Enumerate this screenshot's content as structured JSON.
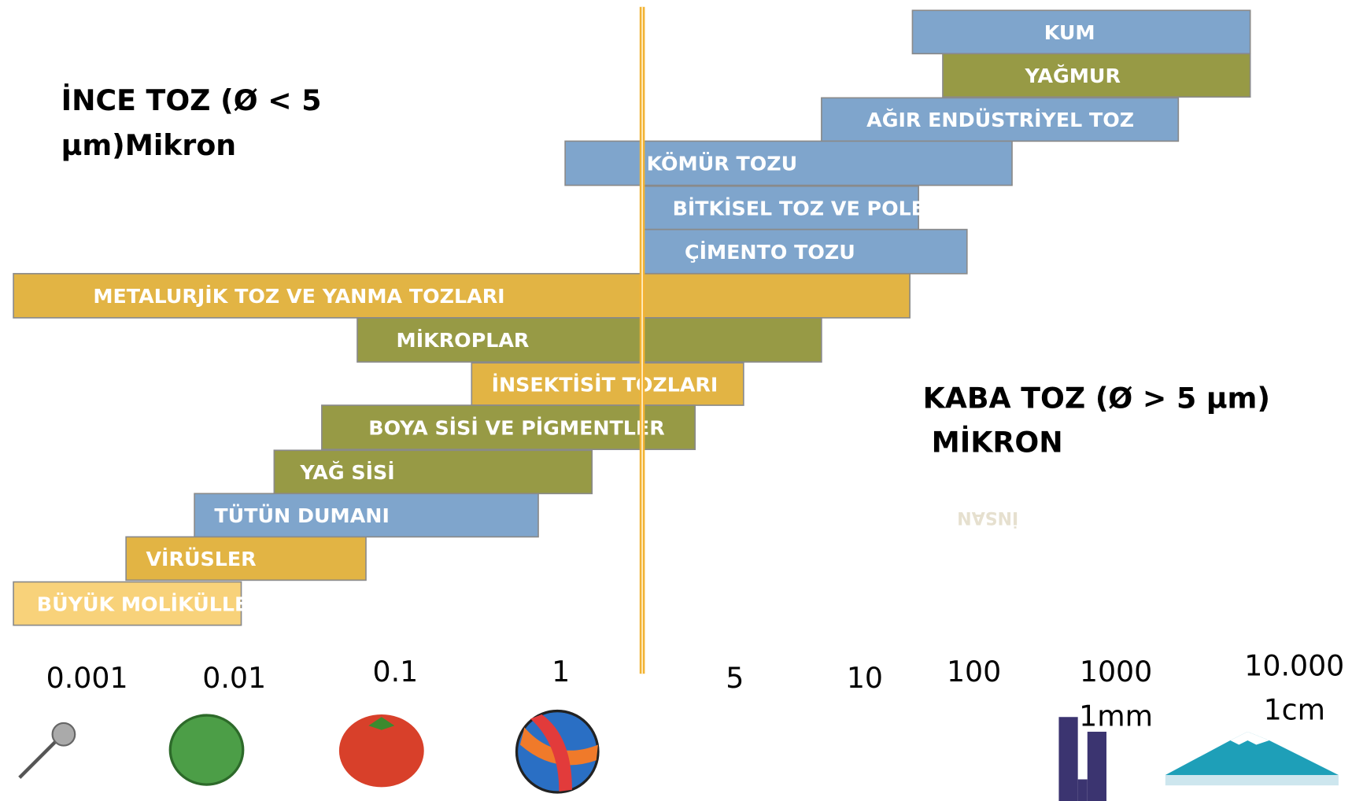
{
  "fine_title": {
    "lines": [
      "İNCE TOZ (Ø < 5",
      "µm)Mikron"
    ]
  },
  "coarse_title": {
    "lines": [
      "KABA TOZ (Ø > 5 µm)",
      "MİKRON"
    ]
  },
  "bars": [
    {
      "label": "KUM"
    },
    {
      "label": "YAĞMUR"
    },
    {
      "label": "AĞIR ENDÜSTRİYEL TOZ"
    },
    {
      "label": "KÖMÜR TOZU"
    },
    {
      "label": "BİTKİSEL TOZ VE POLENLER"
    },
    {
      "label": "ÇİMENTO TOZU"
    },
    {
      "label": "METALURJİK TOZ VE YANMA TOZLARI"
    },
    {
      "label": "MİKROPLAR"
    },
    {
      "label": "İNSEKTİSİT TOZLARI"
    },
    {
      "label": "BOYA SİSİ VE PİGMENTLER"
    },
    {
      "label": "YAĞ SİSİ"
    },
    {
      "label": "TÜTÜN DUMANI"
    },
    {
      "label": "VİRÜSLER"
    },
    {
      "label": "BÜYÜK MOLİKÜLLER"
    }
  ],
  "scale": [
    {
      "lines": [
        "0.001"
      ]
    },
    {
      "lines": [
        "0.01"
      ]
    },
    {
      "lines": [
        "0.1"
      ]
    },
    {
      "lines": [
        "1"
      ]
    },
    {
      "lines": [
        "5"
      ]
    },
    {
      "lines": [
        "10"
      ]
    },
    {
      "lines": [
        "100"
      ]
    },
    {
      "lines": [
        "1000",
        "1mm"
      ]
    },
    {
      "lines": [
        "10.000",
        "1cm"
      ]
    }
  ],
  "ghost_label": "İNSAN"
}
